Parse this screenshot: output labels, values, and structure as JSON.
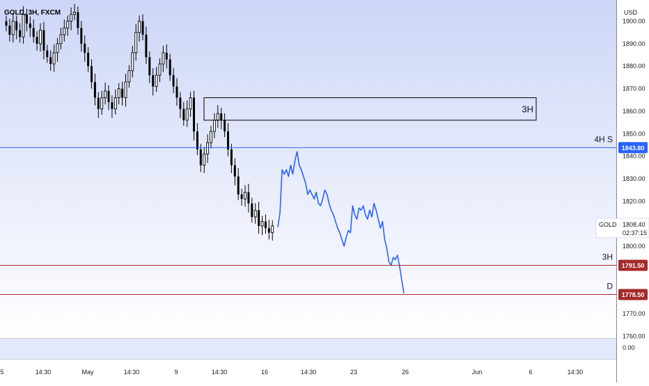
{
  "symbol_label": "GOLD, 3H, FXCM",
  "currency": "USD",
  "colors": {
    "bg_top": "#cdd6f7",
    "bg_bottom": "#ffffff",
    "candle": "#000000",
    "projection": "#2962ff",
    "blue_line": "#2962ff",
    "red_line": "#b22833",
    "tag_blue": "#2962ff",
    "tag_red": "#a52a2a"
  },
  "chart_data": {
    "type": "line",
    "title": "GOLD, 3H, FXCM",
    "ylabel": "USD",
    "ylim": [
      1752,
      1906
    ],
    "y_ticks": [
      1900,
      1890,
      1880,
      1870,
      1860,
      1850,
      1840,
      1830,
      1820,
      1810,
      1800,
      1770,
      1760
    ],
    "x_ticks": [
      "5",
      "14:30",
      "May",
      "14:30",
      "9",
      "14:30",
      "16",
      "14:30",
      "23",
      "26",
      "Jun",
      "6",
      "14:30"
    ],
    "series": [
      {
        "type": "candlestick",
        "close": [
          1898,
          1894,
          1900,
          1896,
          1893,
          1903,
          1899,
          1897,
          1893,
          1890,
          1896,
          1887,
          1884,
          1881,
          1886,
          1890,
          1894,
          1897,
          1900,
          1903,
          1904,
          1897,
          1890,
          1886,
          1880,
          1873,
          1866,
          1861,
          1866,
          1869,
          1864,
          1861,
          1866,
          1870,
          1866,
          1873,
          1878,
          1886,
          1895,
          1900,
          1894,
          1884,
          1876,
          1871,
          1876,
          1881,
          1886,
          1883,
          1876,
          1871,
          1866,
          1861,
          1856,
          1861,
          1866,
          1851,
          1843,
          1836,
          1841,
          1846,
          1851,
          1856,
          1859,
          1856,
          1851,
          1843,
          1836,
          1831,
          1823,
          1821,
          1824,
          1819,
          1813,
          1816,
          1809,
          1811,
          1808,
          1806,
          1809
        ]
      },
      {
        "type": "projection",
        "x_start_index": 80,
        "values": [
          1808.5,
          1815,
          1834,
          1832,
          1834,
          1831,
          1836,
          1832,
          1838,
          1842,
          1836,
          1834,
          1831,
          1828,
          1823,
          1825,
          1823,
          1821,
          1824,
          1819,
          1818,
          1821,
          1825,
          1823,
          1819,
          1816,
          1814,
          1811,
          1808,
          1806,
          1803,
          1800,
          1804,
          1807,
          1806,
          1818,
          1814,
          1812,
          1817,
          1816,
          1818,
          1814,
          1812,
          1816,
          1813,
          1819,
          1816,
          1812,
          1808,
          1811,
          1803,
          1799,
          1793,
          1791.5,
          1795,
          1794,
          1796,
          1791,
          1785,
          1779
        ]
      }
    ],
    "levels": [
      {
        "label": "4H S",
        "price": 1843.8,
        "tag": "1843.80",
        "color": "blue"
      },
      {
        "label": "3H",
        "price": 1791.5,
        "tag": "1791.50",
        "color": "red"
      },
      {
        "label": "D",
        "price": 1778.5,
        "tag": "1778.50",
        "color": "red"
      }
    ],
    "zone": {
      "label": "3H",
      "price_top": 1866,
      "price_bottom": 1856
    },
    "current": {
      "symbol": "GOLD",
      "price": "1808.40",
      "countdown": "02:37:15"
    },
    "volume_axis_value": "0.00",
    "grid": false,
    "legend": "none"
  }
}
